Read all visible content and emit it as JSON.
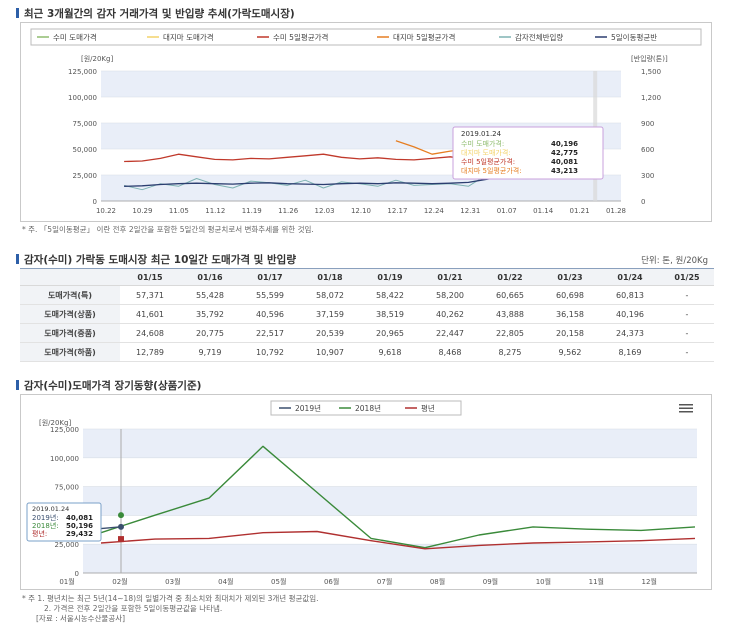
{
  "section1": {
    "title": "최근 3개월간의 감자 거래가격 및 반입량 추세(가락도매시장)",
    "legend": [
      "수미 도매가격",
      "대지마 도매가격",
      "수미 5일평균가격",
      "대지마 5일평균가격",
      "감자전체반입량",
      "5일이동평균반"
    ],
    "y_left_label": "[원/20Kg]",
    "y_right_label": "[반입량(톤)]",
    "y_left_ticks": [
      "125,000",
      "100,000",
      "75,000",
      "50,000",
      "25,000",
      "0"
    ],
    "y_right_ticks": [
      "1,500",
      "1,200",
      "900",
      "600",
      "300",
      "0"
    ],
    "x_ticks": [
      "10.22",
      "10.29",
      "11.05",
      "11.12",
      "11.19",
      "11.26",
      "12.03",
      "12.10",
      "12.17",
      "12.24",
      "12.31",
      "01.07",
      "01.14",
      "01.21",
      "01.28"
    ],
    "tooltip": {
      "date": "2019.01.24",
      "rows": [
        {
          "label": "수미 도매가격:",
          "value": "40,196"
        },
        {
          "label": "대지마 도매가격:",
          "value": "42,775"
        },
        {
          "label": "수미 5일평균가격:",
          "value": "40,081"
        },
        {
          "label": "대지마 5일평균가격:",
          "value": "43,213"
        }
      ]
    },
    "note": "* 주. 「5일이동평균」 이란 전후 2일간을 포함한 5일간의 평균치로서 변화추세를 위한 것임."
  },
  "section2": {
    "title": "감자(수미) 가락동 도매시장 최근 10일간 도매가격 및 반입량",
    "unit": "단위: 톤, 원/20Kg",
    "columns": [
      "",
      "01/15",
      "01/16",
      "01/17",
      "01/18",
      "01/19",
      "01/21",
      "01/22",
      "01/23",
      "01/24",
      "01/25"
    ],
    "rows": [
      {
        "label": "도매가격(특)",
        "values": [
          "57,371",
          "55,428",
          "55,599",
          "58,072",
          "58,422",
          "58,200",
          "60,665",
          "60,698",
          "60,813",
          "-"
        ]
      },
      {
        "label": "도매가격(상품)",
        "values": [
          "41,601",
          "35,792",
          "40,596",
          "37,159",
          "38,519",
          "40,262",
          "43,888",
          "36,158",
          "40,196",
          "-"
        ]
      },
      {
        "label": "도매가격(중품)",
        "values": [
          "24,608",
          "20,775",
          "22,517",
          "20,539",
          "20,965",
          "22,447",
          "22,805",
          "20,158",
          "24,373",
          "-"
        ]
      },
      {
        "label": "도매가격(하품)",
        "values": [
          "12,789",
          "9,719",
          "10,792",
          "10,907",
          "9,618",
          "8,468",
          "8,275",
          "9,562",
          "8,169",
          "-"
        ]
      }
    ]
  },
  "section3": {
    "title": "감자(수미)도매가격 장기동향(상품기준)",
    "legend": [
      "2019년",
      "2018년",
      "평년"
    ],
    "y_label": "[원/20Kg]",
    "y_ticks": [
      "125,000",
      "100,000",
      "75,000",
      "50,000",
      "25,000",
      "0"
    ],
    "x_ticks": [
      "01월",
      "02월",
      "03월",
      "04월",
      "05월",
      "06월",
      "07월",
      "08월",
      "09월",
      "10월",
      "11월",
      "12월"
    ],
    "tooltip": {
      "date": "2019.01.24",
      "rows": [
        {
          "label": "2019년:",
          "value": "40,081"
        },
        {
          "label": "2018년:",
          "value": "50,196"
        },
        {
          "label": "평년:",
          "value": "29,432"
        }
      ]
    },
    "note1": "* 주 1. 평년치는 최근 5년(14~18)의 일별가격 중 최소치와 최대치가 제외된 3개년 평균값임.",
    "note2": "2. 가격은 전후 2일간을 포함한 5일이동평균값을 나타냄.",
    "note3": "[자료 : 서울시농수산물공사]"
  },
  "chart_data": [
    {
      "type": "line",
      "title": "최근 3개월간의 감자 거래가격 및 반입량 추세(가락도매시장)",
      "ylabel": "[원/20Kg]",
      "y2label": "[반입량(톤)]",
      "ylim": [
        0,
        125000
      ],
      "y2lim": [
        0,
        1500
      ],
      "legend_position": "top",
      "colors": {
        "sumi_price": "#8fbc6f",
        "daejima_price": "#f3d36a",
        "sumi_ma": "#c0392b",
        "daejima_ma": "#e67e22",
        "volume": "#7fb3b3",
        "volume_ma": "#2c3e70"
      },
      "x": [
        "10.22",
        "10.25",
        "10.29",
        "11.01",
        "11.05",
        "11.08",
        "11.12",
        "11.15",
        "11.19",
        "11.22",
        "11.26",
        "11.29",
        "12.03",
        "12.06",
        "12.10",
        "12.13",
        "12.17",
        "12.20",
        "12.24",
        "12.27",
        "12.31",
        "01.03",
        "01.07",
        "01.10",
        "01.14",
        "01.17",
        "01.21",
        "01.24"
      ],
      "series": [
        {
          "name": "수미 5일평균가격",
          "values": [
            null,
            38000,
            38500,
            41000,
            45000,
            42500,
            40000,
            39500,
            41000,
            40500,
            42000,
            43500,
            45000,
            42000,
            40500,
            41500,
            40000,
            39500,
            41000,
            42500,
            40000,
            40500,
            38500,
            39000,
            41500,
            40500,
            40500,
            40081
          ]
        },
        {
          "name": "대지마 5일평균가격",
          "values": [
            null,
            null,
            null,
            null,
            null,
            null,
            null,
            null,
            null,
            null,
            null,
            null,
            null,
            null,
            null,
            null,
            58000,
            52000,
            45000,
            48000,
            50000,
            47000,
            49000,
            48000,
            46000,
            44500,
            44000,
            43213
          ]
        },
        {
          "name": "감자전체반입량(톤)",
          "values": [
            null,
            180,
            130,
            200,
            170,
            260,
            190,
            150,
            230,
            210,
            180,
            240,
            150,
            220,
            200,
            170,
            240,
            180,
            190,
            200,
            170,
            300,
            330,
            280,
            310,
            290,
            300,
            310
          ]
        },
        {
          "name": "5일이동평균반입량(톤)",
          "values": [
            null,
            170,
            175,
            190,
            200,
            205,
            200,
            195,
            205,
            210,
            200,
            195,
            190,
            200,
            205,
            200,
            210,
            205,
            200,
            205,
            215,
            250,
            290,
            300,
            305,
            300,
            305,
            305
          ]
        }
      ]
    },
    {
      "type": "line",
      "title": "감자(수미)도매가격 장기동향(상품기준)",
      "ylabel": "[원/20Kg]",
      "ylim": [
        0,
        125000
      ],
      "legend_position": "top",
      "colors": {
        "y2019": "#3a4f6e",
        "y2018": "#3a8a3a",
        "normal": "#b03030"
      },
      "x": [
        "01월",
        "02월",
        "03월",
        "04월",
        "05월",
        "06월",
        "07월",
        "08월",
        "09월",
        "10월",
        "11월",
        "12월"
      ],
      "series": [
        {
          "name": "2019년",
          "values": [
            40081,
            null,
            null,
            null,
            null,
            null,
            null,
            null,
            null,
            null,
            null,
            null
          ]
        },
        {
          "name": "2018년",
          "values": [
            35000,
            50196,
            65000,
            110000,
            70000,
            30000,
            22000,
            33000,
            40000,
            38000,
            37000,
            40000
          ]
        },
        {
          "name": "평년",
          "values": [
            26000,
            29432,
            30000,
            35000,
            36000,
            28000,
            21000,
            24000,
            26000,
            27000,
            28000,
            30000
          ]
        }
      ]
    }
  ]
}
